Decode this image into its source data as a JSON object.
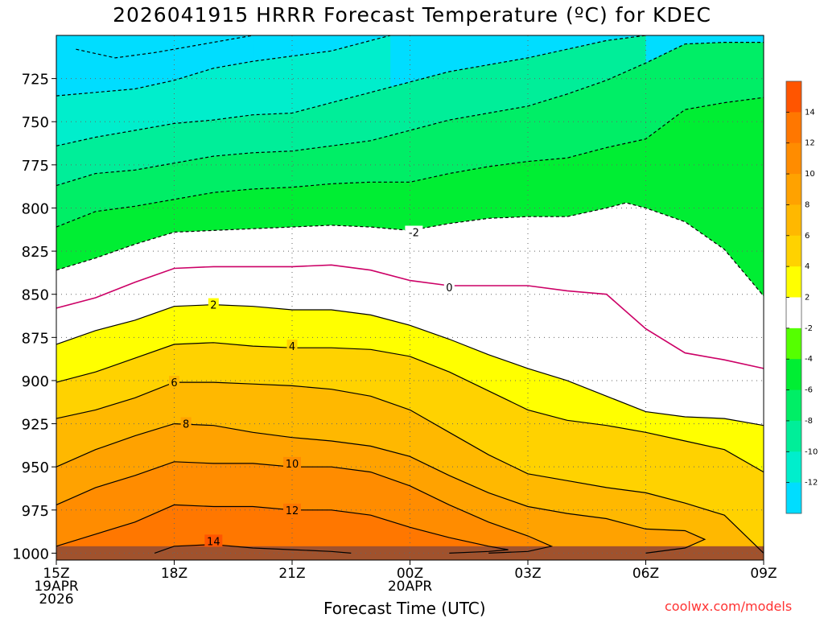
{
  "chart_data": {
    "type": "area",
    "title": "2026041915 HRRR Forecast Temperature (ºC) for KDEC",
    "xlabel": "Forecast Time (UTC)",
    "ylabel": "",
    "credit": "coolwx.com/models",
    "x_hours": [
      0,
      3,
      6,
      9,
      12,
      15,
      18
    ],
    "x_ticks": [
      {
        "hour": 0,
        "lines": [
          "15Z",
          "19APR",
          "2026"
        ]
      },
      {
        "hour": 3,
        "lines": [
          "18Z"
        ]
      },
      {
        "hour": 6,
        "lines": [
          "21Z"
        ]
      },
      {
        "hour": 9,
        "lines": [
          "00Z",
          "20APR"
        ]
      },
      {
        "hour": 12,
        "lines": [
          "03Z"
        ]
      },
      {
        "hour": 15,
        "lines": [
          "06Z"
        ]
      },
      {
        "hour": 18,
        "lines": [
          "09Z"
        ]
      }
    ],
    "xlim": [
      0,
      18
    ],
    "y_ticks": [
      725,
      750,
      775,
      800,
      825,
      850,
      875,
      900,
      925,
      950,
      975,
      1000
    ],
    "ylim": [
      700,
      1004
    ],
    "grid": true,
    "colorbar": {
      "placement": "right",
      "ticks": [
        14,
        12,
        10,
        8,
        6,
        4,
        2,
        -2,
        -4,
        -6,
        -8,
        -10,
        -12
      ],
      "bands": [
        {
          "from": 14,
          "to": 16,
          "color": "#ff5500"
        },
        {
          "from": 12,
          "to": 14,
          "color": "#ff7700"
        },
        {
          "from": 10,
          "to": 12,
          "color": "#ff8c00"
        },
        {
          "from": 8,
          "to": 10,
          "color": "#ffa200"
        },
        {
          "from": 6,
          "to": 8,
          "color": "#ffb800"
        },
        {
          "from": 4,
          "to": 6,
          "color": "#ffd200"
        },
        {
          "from": 2,
          "to": 4,
          "color": "#ffff00"
        },
        {
          "from": -2,
          "to": 2,
          "color": "#ffffff"
        },
        {
          "from": -4,
          "to": -2,
          "color": "#55ff00"
        },
        {
          "from": -6,
          "to": -4,
          "color": "#00ee33"
        },
        {
          "from": -8,
          "to": -6,
          "color": "#00ee66"
        },
        {
          "from": -10,
          "to": -8,
          "color": "#00ee99"
        },
        {
          "from": -12,
          "to": -10,
          "color": "#00eecc"
        },
        {
          "from": -14,
          "to": -12,
          "color": "#00ddff"
        }
      ]
    },
    "surface_color": "#a0522d",
    "zero_line_color": "#cc0066",
    "contours": [
      {
        "level": -14,
        "style": "dashed",
        "labelled": false,
        "points": [
          [
            0.5,
            708
          ],
          [
            1.5,
            713
          ],
          [
            2.5,
            710
          ],
          [
            3.5,
            706
          ],
          [
            4,
            704
          ],
          [
            5,
            700
          ]
        ]
      },
      {
        "level": -12,
        "style": "dashed",
        "labelled": false,
        "points": [
          [
            0,
            735
          ],
          [
            1,
            733
          ],
          [
            2,
            731
          ],
          [
            3,
            726
          ],
          [
            4,
            719
          ],
          [
            5,
            715
          ],
          [
            6,
            712
          ],
          [
            7,
            709
          ],
          [
            8,
            703
          ],
          [
            8.5,
            700
          ]
        ]
      },
      {
        "level": -10,
        "style": "dashed",
        "labelled": false,
        "points": [
          [
            0,
            764
          ],
          [
            1,
            759
          ],
          [
            2,
            755
          ],
          [
            3,
            751
          ],
          [
            4,
            749
          ],
          [
            5,
            746
          ],
          [
            6,
            745
          ],
          [
            7,
            739
          ],
          [
            8,
            733
          ],
          [
            9,
            727
          ],
          [
            10,
            721
          ],
          [
            11,
            717
          ],
          [
            12,
            713
          ],
          [
            13,
            708
          ],
          [
            14,
            703
          ],
          [
            15,
            700
          ]
        ]
      },
      {
        "level": -8,
        "style": "dashed",
        "labelled": false,
        "points": [
          [
            0,
            787
          ],
          [
            1,
            780
          ],
          [
            2,
            778
          ],
          [
            3,
            774
          ],
          [
            4,
            770
          ],
          [
            5,
            768
          ],
          [
            6,
            767
          ],
          [
            7,
            764
          ],
          [
            8,
            761
          ],
          [
            9,
            755
          ],
          [
            10,
            749
          ],
          [
            11,
            745
          ],
          [
            12,
            741
          ],
          [
            13,
            734
          ],
          [
            14,
            726
          ],
          [
            15,
            716
          ],
          [
            16,
            705
          ],
          [
            17,
            704
          ],
          [
            18,
            704
          ]
        ]
      },
      {
        "level": -6,
        "style": "dashed",
        "labelled": false,
        "points": [
          [
            0,
            811
          ],
          [
            1,
            802
          ],
          [
            2,
            799
          ],
          [
            3,
            795
          ],
          [
            4,
            791
          ],
          [
            5,
            789
          ],
          [
            6,
            788
          ],
          [
            7,
            786
          ],
          [
            8,
            785
          ],
          [
            9,
            785
          ],
          [
            10,
            780
          ],
          [
            11,
            776
          ],
          [
            12,
            773
          ],
          [
            13,
            771
          ],
          [
            14,
            765
          ],
          [
            15,
            760
          ],
          [
            16,
            743
          ],
          [
            17,
            739
          ],
          [
            18,
            736
          ]
        ]
      },
      {
        "level": -2,
        "style": "dashed",
        "labelled": true,
        "label_at": [
          9.1,
          814
        ],
        "points": [
          [
            0,
            836
          ],
          [
            1,
            829
          ],
          [
            2,
            821
          ],
          [
            3,
            814
          ],
          [
            4,
            813
          ],
          [
            5,
            812
          ],
          [
            6,
            811
          ],
          [
            7,
            810
          ],
          [
            8,
            811
          ],
          [
            9,
            813
          ],
          [
            10,
            809
          ],
          [
            11,
            806
          ],
          [
            12,
            805
          ],
          [
            13,
            805
          ],
          [
            14,
            800
          ],
          [
            14.5,
            797
          ],
          [
            15,
            800
          ],
          [
            16,
            808
          ],
          [
            17,
            824
          ],
          [
            18,
            851
          ]
        ]
      },
      {
        "level": 0,
        "style": "solid",
        "labelled": true,
        "label_at": [
          10,
          846
        ],
        "points": [
          [
            0,
            858
          ],
          [
            1,
            852
          ],
          [
            2,
            843
          ],
          [
            3,
            835
          ],
          [
            4,
            834
          ],
          [
            5,
            834
          ],
          [
            6,
            834
          ],
          [
            7,
            833
          ],
          [
            8,
            836
          ],
          [
            9,
            842
          ],
          [
            10,
            845
          ],
          [
            11,
            845
          ],
          [
            12,
            845
          ],
          [
            13,
            848
          ],
          [
            14,
            850
          ],
          [
            15,
            870
          ],
          [
            16,
            884
          ],
          [
            17,
            888
          ],
          [
            18,
            893
          ]
        ]
      },
      {
        "level": 2,
        "style": "solid",
        "labelled": true,
        "label_at": [
          4,
          856
        ],
        "points": [
          [
            0,
            879
          ],
          [
            1,
            871
          ],
          [
            2,
            865
          ],
          [
            3,
            857
          ],
          [
            4,
            856
          ],
          [
            5,
            857
          ],
          [
            6,
            859
          ],
          [
            7,
            859
          ],
          [
            8,
            862
          ],
          [
            9,
            868
          ],
          [
            10,
            876
          ],
          [
            11,
            885
          ],
          [
            12,
            893
          ],
          [
            13,
            900
          ],
          [
            14,
            909
          ],
          [
            15,
            918
          ],
          [
            16,
            921
          ],
          [
            17,
            922
          ],
          [
            18,
            926
          ]
        ]
      },
      {
        "level": 4,
        "style": "solid",
        "labelled": true,
        "label_at": [
          6,
          880
        ],
        "points": [
          [
            0,
            901
          ],
          [
            1,
            895
          ],
          [
            2,
            887
          ],
          [
            3,
            879
          ],
          [
            4,
            878
          ],
          [
            5,
            880
          ],
          [
            6,
            881
          ],
          [
            7,
            881
          ],
          [
            8,
            882
          ],
          [
            9,
            886
          ],
          [
            10,
            895
          ],
          [
            11,
            906
          ],
          [
            12,
            917
          ],
          [
            13,
            923
          ],
          [
            14,
            926
          ],
          [
            15,
            930
          ],
          [
            16,
            935
          ],
          [
            17,
            940
          ],
          [
            18,
            953
          ]
        ]
      },
      {
        "level": 6,
        "style": "solid",
        "labelled": true,
        "label_at": [
          3,
          901
        ],
        "points": [
          [
            0,
            922
          ],
          [
            1,
            917
          ],
          [
            2,
            910
          ],
          [
            3,
            901
          ],
          [
            4,
            901
          ],
          [
            5,
            902
          ],
          [
            6,
            903
          ],
          [
            7,
            905
          ],
          [
            8,
            909
          ],
          [
            9,
            917
          ],
          [
            10,
            930
          ],
          [
            11,
            943
          ],
          [
            12,
            954
          ],
          [
            13,
            958
          ],
          [
            14,
            962
          ],
          [
            15,
            965
          ],
          [
            16,
            971
          ],
          [
            17,
            978
          ],
          [
            18,
            1000
          ]
        ]
      },
      {
        "level": 8,
        "style": "solid",
        "labelled": true,
        "label_at": [
          3.3,
          925
        ],
        "points": [
          [
            0,
            950
          ],
          [
            1,
            940
          ],
          [
            2,
            932
          ],
          [
            3,
            925
          ],
          [
            4,
            926
          ],
          [
            5,
            930
          ],
          [
            6,
            933
          ],
          [
            7,
            935
          ],
          [
            8,
            938
          ],
          [
            9,
            944
          ],
          [
            10,
            955
          ],
          [
            11,
            965
          ],
          [
            12,
            973
          ],
          [
            13,
            977
          ],
          [
            14,
            980
          ],
          [
            15,
            986
          ],
          [
            16,
            987
          ],
          [
            16.5,
            992
          ],
          [
            16,
            997
          ],
          [
            15,
            1000
          ]
        ]
      },
      {
        "level": 10,
        "style": "solid",
        "labelled": true,
        "label_at": [
          6,
          948
        ],
        "points": [
          [
            0,
            972
          ],
          [
            1,
            962
          ],
          [
            2,
            955
          ],
          [
            3,
            947
          ],
          [
            4,
            948
          ],
          [
            5,
            948
          ],
          [
            6,
            950
          ],
          [
            7,
            950
          ],
          [
            8,
            953
          ],
          [
            9,
            961
          ],
          [
            10,
            972
          ],
          [
            11,
            982
          ],
          [
            12,
            990
          ],
          [
            12.6,
            996
          ],
          [
            12,
            999
          ],
          [
            11,
            1000
          ]
        ]
      },
      {
        "level": 12,
        "style": "solid",
        "labelled": true,
        "label_at": [
          6,
          975
        ],
        "points": [
          [
            0,
            996
          ],
          [
            1,
            989
          ],
          [
            2,
            982
          ],
          [
            3,
            972
          ],
          [
            4,
            973
          ],
          [
            5,
            973
          ],
          [
            6,
            975
          ],
          [
            7,
            975
          ],
          [
            8,
            978
          ],
          [
            9,
            985
          ],
          [
            10,
            991
          ],
          [
            11,
            996
          ],
          [
            11.5,
            998
          ],
          [
            11,
            999
          ],
          [
            10,
            1000
          ]
        ]
      },
      {
        "level": 14,
        "style": "solid",
        "labelled": true,
        "label_at": [
          4,
          993
        ],
        "points": [
          [
            2.5,
            1000
          ],
          [
            3,
            996
          ],
          [
            4,
            995
          ],
          [
            5,
            997
          ],
          [
            6,
            998
          ],
          [
            7,
            999
          ],
          [
            7.5,
            1000
          ]
        ]
      }
    ]
  }
}
